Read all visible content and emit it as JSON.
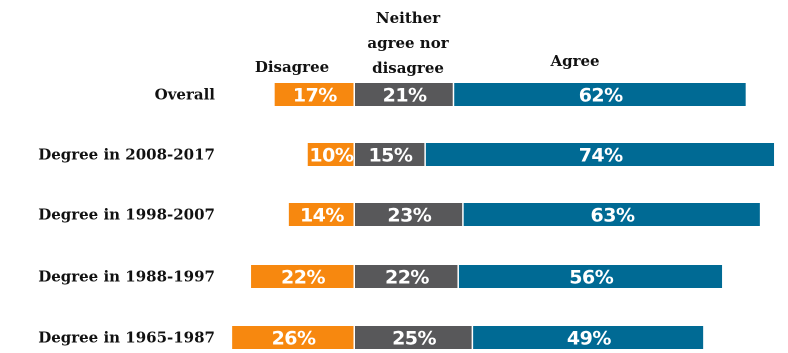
{
  "chart_data": {
    "type": "bar",
    "stacked": true,
    "orientation": "horizontal",
    "diverging": true,
    "categories": [
      "Overall",
      "Degree in 2008-2017",
      "Degree in 1998-2007",
      "Degree in 1988-1997",
      "Degree in 1965-1987"
    ],
    "series": [
      {
        "name": "Disagree",
        "values": [
          17,
          10,
          14,
          22,
          26
        ],
        "color": "#F7880F"
      },
      {
        "name": "Neither agree nor disagree",
        "values": [
          21,
          15,
          23,
          22,
          25
        ],
        "color": "#58585A"
      },
      {
        "name": "Agree",
        "values": [
          62,
          74,
          63,
          56,
          49
        ],
        "color": "#006A94"
      }
    ],
    "value_suffix": "%",
    "headers": {
      "disagree": "Disagree",
      "neither": [
        "Neither",
        "agree nor",
        "disagree"
      ],
      "agree": "Agree"
    },
    "legend": "top",
    "grid": false
  }
}
